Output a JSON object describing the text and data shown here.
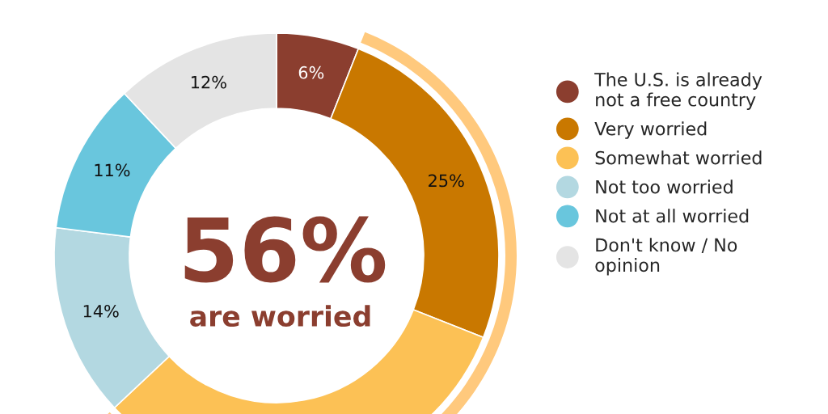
{
  "chart_data": {
    "type": "donut",
    "categories": [
      "The U.S. is already\nnot a free country",
      "Very worried",
      "Somewhat worried",
      "Not too worried",
      "Not at all worried",
      "Don't know / No\nopinion"
    ],
    "values": [
      6,
      25,
      32,
      14,
      11,
      12
    ],
    "colors": [
      "#8b3e2f",
      "#c97800",
      "#fcc155",
      "#b3d8e1",
      "#69c6dd",
      "#e4e4e4"
    ],
    "value_labels": [
      "6%",
      "25%",
      null,
      "14%",
      "11%",
      "12%"
    ],
    "annotations": [
      "56%",
      "are worried"
    ],
    "legend": "right"
  }
}
